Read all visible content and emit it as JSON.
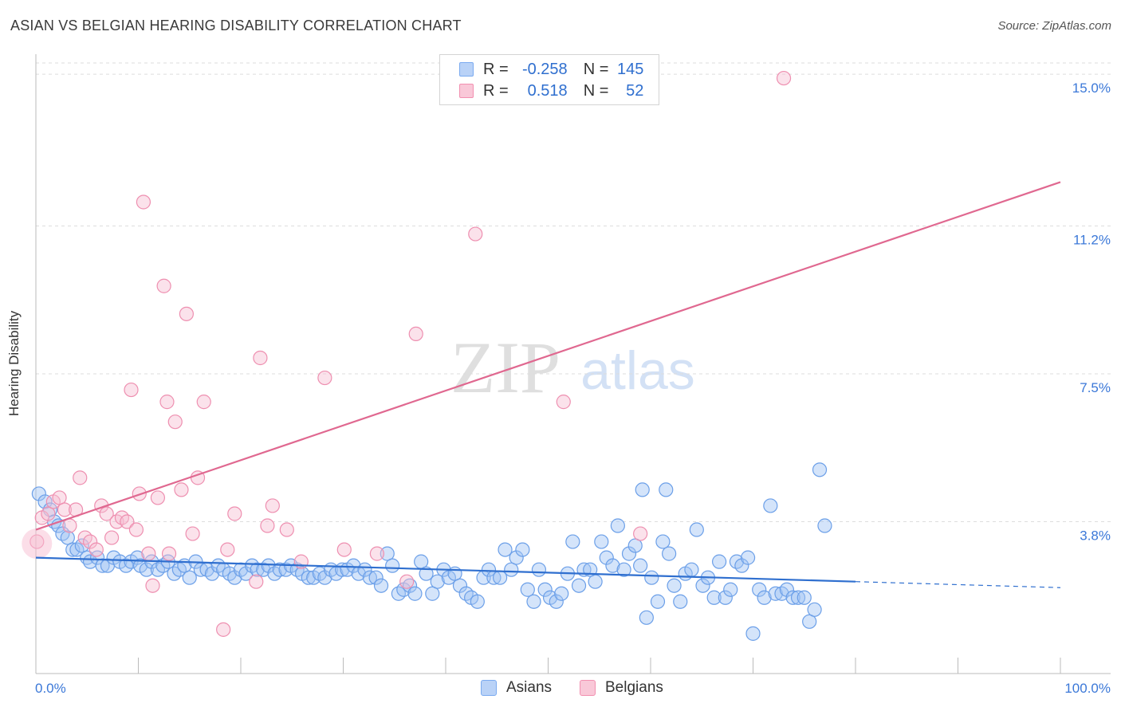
{
  "title": "ASIAN VS BELGIAN HEARING DISABILITY CORRELATION CHART",
  "source": "Source: ZipAtlas.com",
  "watermark": {
    "zip": "ZIP",
    "atlas": "atlas"
  },
  "legend": {
    "rows": [
      {
        "r_label": "R =",
        "r_value": "-0.258",
        "n_label": "N =",
        "n_value": "145",
        "color": "#7aaaf0",
        "fill": "#b9d2f7"
      },
      {
        "r_label": "R =",
        "r_value": "0.518",
        "n_label": "N =",
        "n_value": "52",
        "color": "#f28fb0",
        "fill": "#f9c8d8"
      }
    ]
  },
  "bottom_legend": [
    {
      "label": "Asians",
      "color": "#7aaaf0",
      "fill": "#b9d2f7"
    },
    {
      "label": "Belgians",
      "color": "#f28fb0",
      "fill": "#f9c8d8"
    }
  ],
  "chart_data": {
    "type": "scatter",
    "title": "ASIAN VS BELGIAN HEARING DISABILITY CORRELATION CHART",
    "xlabel": "",
    "ylabel": "Hearing Disability",
    "xlim": [
      0,
      100
    ],
    "ylim": [
      0,
      15.5
    ],
    "x_tick_labels": [
      "0.0%",
      "100.0%"
    ],
    "y_ticks": [
      3.8,
      7.5,
      11.2,
      15.0
    ],
    "y_tick_labels": [
      "3.8%",
      "7.5%",
      "11.2%",
      "15.0%"
    ],
    "grid": true,
    "colors": {
      "asians_line": "#2f6fcf",
      "belgians_line": "#e06890",
      "tick_label": "#3b78d8"
    },
    "series": [
      {
        "name": "Asians",
        "trend": {
          "x_start": 0,
          "y_start": 2.9,
          "x_solid_end": 80,
          "y_solid_end": 2.3,
          "x_dash_end": 100,
          "y_dash_end": 2.15
        },
        "points": [
          [
            0.3,
            4.5
          ],
          [
            0.9,
            4.3
          ],
          [
            1.4,
            4.1
          ],
          [
            1.8,
            3.8
          ],
          [
            2.2,
            3.7
          ],
          [
            2.6,
            3.5
          ],
          [
            3.1,
            3.4
          ],
          [
            3.6,
            3.1
          ],
          [
            4.0,
            3.1
          ],
          [
            4.5,
            3.2
          ],
          [
            5.0,
            2.9
          ],
          [
            5.3,
            2.8
          ],
          [
            6.0,
            2.9
          ],
          [
            6.5,
            2.7
          ],
          [
            7.0,
            2.7
          ],
          [
            7.6,
            2.9
          ],
          [
            8.2,
            2.8
          ],
          [
            8.8,
            2.7
          ],
          [
            9.3,
            2.8
          ],
          [
            9.9,
            2.9
          ],
          [
            10.2,
            2.7
          ],
          [
            10.8,
            2.6
          ],
          [
            11.3,
            2.8
          ],
          [
            11.9,
            2.6
          ],
          [
            12.4,
            2.7
          ],
          [
            12.9,
            2.8
          ],
          [
            13.5,
            2.5
          ],
          [
            14.0,
            2.6
          ],
          [
            14.5,
            2.7
          ],
          [
            15.0,
            2.4
          ],
          [
            15.6,
            2.8
          ],
          [
            16.1,
            2.6
          ],
          [
            16.7,
            2.6
          ],
          [
            17.2,
            2.5
          ],
          [
            17.8,
            2.7
          ],
          [
            18.3,
            2.6
          ],
          [
            18.9,
            2.5
          ],
          [
            19.4,
            2.4
          ],
          [
            20.0,
            2.6
          ],
          [
            20.5,
            2.5
          ],
          [
            21.1,
            2.7
          ],
          [
            21.6,
            2.6
          ],
          [
            22.2,
            2.6
          ],
          [
            22.7,
            2.7
          ],
          [
            23.3,
            2.5
          ],
          [
            23.8,
            2.6
          ],
          [
            24.4,
            2.6
          ],
          [
            24.9,
            2.7
          ],
          [
            25.5,
            2.6
          ],
          [
            26.0,
            2.5
          ],
          [
            26.6,
            2.4
          ],
          [
            27.1,
            2.4
          ],
          [
            27.7,
            2.5
          ],
          [
            28.2,
            2.4
          ],
          [
            28.8,
            2.6
          ],
          [
            29.3,
            2.5
          ],
          [
            29.9,
            2.6
          ],
          [
            30.4,
            2.6
          ],
          [
            31.0,
            2.7
          ],
          [
            31.5,
            2.5
          ],
          [
            32.1,
            2.6
          ],
          [
            32.6,
            2.4
          ],
          [
            33.2,
            2.4
          ],
          [
            33.7,
            2.2
          ],
          [
            34.3,
            3.0
          ],
          [
            34.8,
            2.7
          ],
          [
            35.4,
            2.0
          ],
          [
            35.9,
            2.1
          ],
          [
            36.5,
            2.2
          ],
          [
            37.0,
            2.0
          ],
          [
            37.6,
            2.8
          ],
          [
            38.1,
            2.5
          ],
          [
            38.7,
            2.0
          ],
          [
            39.2,
            2.3
          ],
          [
            39.8,
            2.6
          ],
          [
            40.3,
            2.4
          ],
          [
            40.9,
            2.5
          ],
          [
            41.4,
            2.2
          ],
          [
            42.0,
            2.0
          ],
          [
            42.5,
            1.9
          ],
          [
            43.1,
            1.8
          ],
          [
            43.7,
            2.4
          ],
          [
            44.2,
            2.6
          ],
          [
            44.7,
            2.4
          ],
          [
            45.3,
            2.4
          ],
          [
            45.8,
            3.1
          ],
          [
            46.4,
            2.6
          ],
          [
            46.9,
            2.9
          ],
          [
            47.5,
            3.1
          ],
          [
            48.0,
            2.1
          ],
          [
            48.6,
            1.8
          ],
          [
            49.1,
            2.6
          ],
          [
            49.7,
            2.1
          ],
          [
            50.2,
            1.9
          ],
          [
            50.8,
            1.8
          ],
          [
            51.3,
            2.0
          ],
          [
            51.9,
            2.5
          ],
          [
            52.4,
            3.3
          ],
          [
            53.0,
            2.2
          ],
          [
            53.5,
            2.6
          ],
          [
            54.1,
            2.6
          ],
          [
            54.6,
            2.3
          ],
          [
            55.2,
            3.3
          ],
          [
            55.7,
            2.9
          ],
          [
            56.3,
            2.7
          ],
          [
            56.8,
            3.7
          ],
          [
            57.4,
            2.6
          ],
          [
            57.9,
            3.0
          ],
          [
            58.5,
            3.2
          ],
          [
            59.0,
            2.7
          ],
          [
            59.6,
            1.4
          ],
          [
            60.1,
            2.4
          ],
          [
            60.7,
            1.8
          ],
          [
            61.2,
            3.3
          ],
          [
            61.8,
            3.0
          ],
          [
            62.3,
            2.2
          ],
          [
            62.9,
            1.8
          ],
          [
            63.4,
            2.5
          ],
          [
            64.0,
            2.6
          ],
          [
            64.5,
            3.6
          ],
          [
            65.1,
            2.2
          ],
          [
            65.6,
            2.4
          ],
          [
            66.2,
            1.9
          ],
          [
            66.7,
            2.8
          ],
          [
            67.3,
            1.9
          ],
          [
            67.8,
            2.1
          ],
          [
            68.4,
            2.8
          ],
          [
            68.9,
            2.7
          ],
          [
            69.5,
            2.9
          ],
          [
            70.0,
            1.0
          ],
          [
            70.6,
            2.1
          ],
          [
            71.1,
            1.9
          ],
          [
            71.7,
            4.2
          ],
          [
            72.2,
            2.0
          ],
          [
            72.8,
            2.0
          ],
          [
            73.3,
            2.1
          ],
          [
            73.9,
            1.9
          ],
          [
            74.4,
            1.9
          ],
          [
            75.0,
            1.9
          ],
          [
            75.5,
            1.3
          ],
          [
            76.0,
            1.6
          ],
          [
            76.5,
            5.1
          ],
          [
            77.0,
            3.7
          ],
          [
            59.2,
            4.6
          ],
          [
            61.5,
            4.6
          ]
        ]
      },
      {
        "name": "Belgians",
        "trend": {
          "x_start": 0,
          "y_start": 3.6,
          "x_end": 100,
          "y_end": 12.3
        },
        "points": [
          [
            0.1,
            3.3
          ],
          [
            0.6,
            3.9
          ],
          [
            1.2,
            4.0
          ],
          [
            1.7,
            4.3
          ],
          [
            2.3,
            4.4
          ],
          [
            2.8,
            4.1
          ],
          [
            3.3,
            3.7
          ],
          [
            3.9,
            4.1
          ],
          [
            4.3,
            4.9
          ],
          [
            4.8,
            3.4
          ],
          [
            5.3,
            3.3
          ],
          [
            5.9,
            3.1
          ],
          [
            6.4,
            4.2
          ],
          [
            6.9,
            4.0
          ],
          [
            7.4,
            3.4
          ],
          [
            7.9,
            3.8
          ],
          [
            8.4,
            3.9
          ],
          [
            8.9,
            3.8
          ],
          [
            9.3,
            7.1
          ],
          [
            9.8,
            3.6
          ],
          [
            10.1,
            4.5
          ],
          [
            10.5,
            11.8
          ],
          [
            11.0,
            3.0
          ],
          [
            11.4,
            2.2
          ],
          [
            11.9,
            4.4
          ],
          [
            12.5,
            9.7
          ],
          [
            12.8,
            6.8
          ],
          [
            13.0,
            3.0
          ],
          [
            13.6,
            6.3
          ],
          [
            14.2,
            4.6
          ],
          [
            14.7,
            9.0
          ],
          [
            15.3,
            3.5
          ],
          [
            15.8,
            4.9
          ],
          [
            16.4,
            6.8
          ],
          [
            18.3,
            1.1
          ],
          [
            18.7,
            3.1
          ],
          [
            19.4,
            4.0
          ],
          [
            21.5,
            2.3
          ],
          [
            21.9,
            7.9
          ],
          [
            22.6,
            3.7
          ],
          [
            23.1,
            4.2
          ],
          [
            24.5,
            3.6
          ],
          [
            25.9,
            2.8
          ],
          [
            28.2,
            7.4
          ],
          [
            30.1,
            3.1
          ],
          [
            33.3,
            3.0
          ],
          [
            36.2,
            2.3
          ],
          [
            37.1,
            8.5
          ],
          [
            42.9,
            11.0
          ],
          [
            51.5,
            6.8
          ],
          [
            73.0,
            14.9
          ],
          [
            59.0,
            3.5
          ]
        ]
      }
    ]
  }
}
